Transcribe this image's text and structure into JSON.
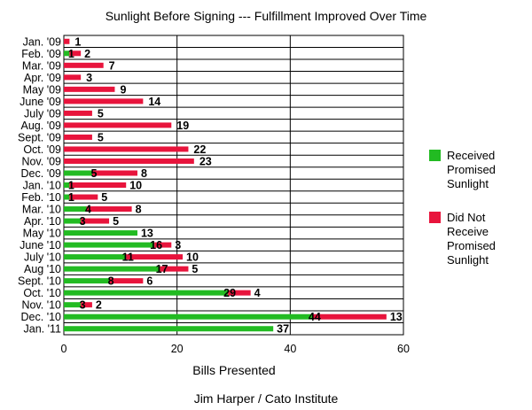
{
  "chart_data": {
    "type": "bar",
    "orientation": "horizontal",
    "stacked": true,
    "title": "Sunlight Before Signing --- Fulfillment Improved Over Time",
    "xlabel": "Bills Presented",
    "credit": "Jim Harper / Cato Institute",
    "xlim": [
      0,
      60
    ],
    "xticks": [
      0,
      20,
      40,
      60
    ],
    "grid": true,
    "legend_position": "right",
    "categories": [
      "Jan. '09",
      "Feb. '09",
      "Mar. '09",
      "Apr. '09",
      "May '09",
      "June '09",
      "July '09",
      "Aug. '09",
      "Sept. '09",
      "Oct. '09",
      "Nov. '09",
      "Dec. '09",
      "Jan. '10",
      "Feb. '10",
      "Mar. '10",
      "Apr. '10",
      "May '10",
      "June '10",
      "July '10",
      "Aug '10",
      "Sept. '10",
      "Oct. '10",
      "Nov. '10",
      "Dec. '10",
      "Jan. '11"
    ],
    "series": [
      {
        "name": "Received Promised Sunlight",
        "legend_lines": [
          "Received",
          "Promised",
          "Sunlight"
        ],
        "color": "#22bb22",
        "values": [
          0,
          1,
          0,
          0,
          0,
          0,
          0,
          0,
          0,
          0,
          0,
          5,
          1,
          1,
          4,
          3,
          13,
          16,
          11,
          17,
          8,
          29,
          3,
          44,
          37
        ]
      },
      {
        "name": "Did Not Receive Promised Sunlight",
        "legend_lines": [
          "Did Not",
          "Receive",
          "Promised",
          "Sunlight"
        ],
        "color": "#e8143c",
        "values": [
          1,
          2,
          7,
          3,
          9,
          14,
          5,
          19,
          5,
          22,
          23,
          8,
          10,
          5,
          8,
          5,
          0,
          3,
          10,
          5,
          6,
          4,
          2,
          13,
          0
        ]
      }
    ]
  }
}
